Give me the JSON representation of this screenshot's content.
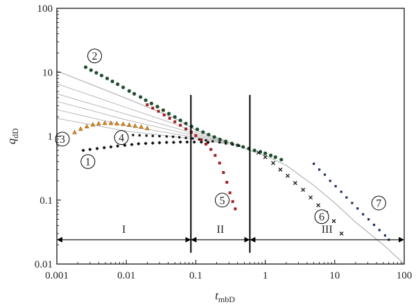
{
  "chart_data": {
    "type": "scatter",
    "scale": {
      "x": "log",
      "y": "log"
    },
    "xlim": [
      0.001,
      100
    ],
    "ylim": [
      0.01,
      100
    ],
    "x_ticks": [
      0.001,
      0.01,
      0.1,
      1,
      10,
      100
    ],
    "x_tick_labels": [
      "0.001",
      "0.01",
      "0.1",
      "1",
      "10",
      "100"
    ],
    "y_ticks": [
      0.01,
      0.1,
      1,
      10,
      100
    ],
    "y_tick_labels": [
      "0.01",
      "0.1",
      "1",
      "10",
      "100"
    ],
    "xlabel": {
      "main": "t",
      "sub": "mbD"
    },
    "ylabel": {
      "main": "q",
      "sub": "dD"
    },
    "grid": false,
    "colors": {
      "curve2": "#1f4e2e",
      "curve3": "#d98b1c",
      "curve4": "#111111",
      "curve5": "#a31e1e",
      "curve6": "#1a1a1a",
      "curve7": "#1a2a60",
      "curve1": "#111111",
      "type_curves": "#b8b8b8"
    },
    "type_curves": [
      {
        "values": [
          [
            0.001,
            10.5
          ],
          [
            0.01,
            3.9
          ],
          [
            0.05,
            1.9
          ],
          [
            0.1,
            1.25
          ],
          [
            0.2,
            0.95
          ],
          [
            0.4,
            0.72
          ],
          [
            0.6,
            0.6
          ],
          [
            1,
            0.5
          ],
          [
            2,
            0.35
          ],
          [
            5,
            0.17
          ],
          [
            10,
            0.09
          ],
          [
            20,
            0.045
          ],
          [
            50,
            0.02
          ],
          [
            100,
            0.01
          ]
        ]
      },
      {
        "values": [
          [
            0.001,
            6.6
          ],
          [
            0.01,
            2.8
          ],
          [
            0.05,
            1.55
          ],
          [
            0.1,
            1.15
          ],
          [
            0.3,
            0.8
          ]
        ]
      },
      {
        "values": [
          [
            0.001,
            4.6
          ],
          [
            0.01,
            2.2
          ],
          [
            0.05,
            1.35
          ],
          [
            0.1,
            1.08
          ],
          [
            0.3,
            0.78
          ]
        ]
      },
      {
        "values": [
          [
            0.001,
            3.5
          ],
          [
            0.01,
            1.8
          ],
          [
            0.05,
            1.2
          ],
          [
            0.1,
            1.02
          ],
          [
            0.3,
            0.77
          ]
        ]
      },
      {
        "values": [
          [
            0.001,
            2.6
          ],
          [
            0.01,
            1.45
          ],
          [
            0.05,
            1.08
          ],
          [
            0.1,
            0.96
          ],
          [
            0.3,
            0.76
          ]
        ]
      },
      {
        "values": [
          [
            0.001,
            1.9
          ],
          [
            0.01,
            1.2
          ],
          [
            0.05,
            0.98
          ],
          [
            0.1,
            0.9
          ],
          [
            0.3,
            0.75
          ]
        ]
      }
    ],
    "series": [
      {
        "id": "1",
        "marker": "diamond",
        "x": [
          0.0024,
          0.003,
          0.0038,
          0.0048,
          0.006,
          0.0075,
          0.0095,
          0.012,
          0.015,
          0.019,
          0.024,
          0.03,
          0.038,
          0.048,
          0.06,
          0.075,
          0.095,
          0.12,
          0.15
        ],
        "y": [
          0.6,
          0.62,
          0.64,
          0.66,
          0.68,
          0.7,
          0.72,
          0.74,
          0.76,
          0.77,
          0.78,
          0.79,
          0.8,
          0.8,
          0.81,
          0.81,
          0.81,
          0.81,
          0.8
        ]
      },
      {
        "id": "2",
        "marker": "circle",
        "x": [
          0.0026,
          0.0031,
          0.0037,
          0.0044,
          0.0053,
          0.0063,
          0.0075,
          0.009,
          0.011,
          0.013,
          0.016,
          0.019,
          0.023,
          0.028,
          0.034,
          0.041,
          0.05,
          0.06,
          0.072,
          0.087,
          0.105,
          0.127,
          0.153,
          0.185,
          0.223,
          0.27,
          0.33,
          0.4,
          0.48,
          0.58,
          0.7,
          0.85,
          1.0,
          1.2,
          1.4,
          1.7
        ],
        "y": [
          12,
          10.8,
          9.8,
          8.9,
          8.0,
          7.2,
          6.5,
          5.8,
          5.1,
          4.6,
          4.1,
          3.65,
          3.25,
          2.9,
          2.55,
          2.25,
          2.0,
          1.77,
          1.58,
          1.42,
          1.28,
          1.16,
          1.06,
          0.97,
          0.89,
          0.83,
          0.77,
          0.72,
          0.68,
          0.64,
          0.6,
          0.57,
          0.54,
          0.5,
          0.47,
          0.43
        ]
      },
      {
        "id": "3",
        "marker": "triangle",
        "x": [
          0.0018,
          0.0022,
          0.0027,
          0.0033,
          0.004,
          0.0049,
          0.006,
          0.0073,
          0.009,
          0.011,
          0.0134,
          0.0164,
          0.02
        ],
        "y": [
          1.15,
          1.3,
          1.42,
          1.52,
          1.58,
          1.6,
          1.6,
          1.58,
          1.55,
          1.5,
          1.45,
          1.4,
          1.33
        ]
      },
      {
        "id": "4",
        "marker": "square-small",
        "x": [
          0.008,
          0.01,
          0.0125,
          0.0155,
          0.0195,
          0.024,
          0.03,
          0.038,
          0.047,
          0.058,
          0.072,
          0.09,
          0.112,
          0.14,
          0.175,
          0.22,
          0.27,
          0.34,
          0.42
        ],
        "y": [
          1.06,
          1.05,
          1.04,
          1.03,
          1.02,
          1.01,
          1.0,
          0.99,
          0.98,
          0.96,
          0.94,
          0.92,
          0.89,
          0.86,
          0.83,
          0.8,
          0.77,
          0.74,
          0.71
        ]
      },
      {
        "id": "5",
        "marker": "square",
        "x": [
          0.02,
          0.024,
          0.029,
          0.035,
          0.042,
          0.05,
          0.06,
          0.072,
          0.086,
          0.1,
          0.12,
          0.14,
          0.165,
          0.19,
          0.22,
          0.25,
          0.28,
          0.31,
          0.34,
          0.37
        ],
        "y": [
          3.1,
          2.75,
          2.45,
          2.15,
          1.9,
          1.68,
          1.48,
          1.3,
          1.15,
          1.02,
          0.88,
          0.75,
          0.62,
          0.5,
          0.38,
          0.27,
          0.19,
          0.13,
          0.095,
          0.073
        ]
      },
      {
        "id": "6",
        "marker": "cross",
        "x": [
          0.8,
          1.0,
          1.3,
          1.65,
          2.1,
          2.7,
          3.5,
          4.5,
          5.8,
          7.5,
          9.7,
          12.5
        ],
        "y": [
          0.55,
          0.47,
          0.38,
          0.3,
          0.24,
          0.185,
          0.145,
          0.11,
          0.083,
          0.063,
          0.047,
          0.03
        ]
      },
      {
        "id": "7",
        "marker": "square-small",
        "x": [
          5,
          6,
          7.2,
          8.6,
          10.3,
          12.4,
          14.8,
          17.8,
          21.3,
          25.6,
          30.7,
          36.8,
          44,
          53,
          60
        ],
        "y": [
          0.37,
          0.3,
          0.25,
          0.2,
          0.165,
          0.135,
          0.11,
          0.09,
          0.074,
          0.06,
          0.05,
          0.041,
          0.034,
          0.028,
          0.024
        ]
      }
    ],
    "vertical_lines": [
      0.085,
      0.6
    ],
    "regions": [
      {
        "label": "I",
        "x_from": 0.001,
        "x_to": 0.085,
        "y": 0.024
      },
      {
        "label": "II",
        "x_from": 0.085,
        "x_to": 0.6,
        "y": 0.024
      },
      {
        "label": "III",
        "x_from": 0.6,
        "x_to": 100,
        "y": 0.024
      }
    ],
    "annotations": [
      {
        "label": "1",
        "x": 0.0028,
        "y": 0.4
      },
      {
        "label": "2",
        "x": 0.0035,
        "y": 18
      },
      {
        "label": "3",
        "x": 0.0012,
        "y": 0.9
      },
      {
        "label": "4",
        "x": 0.0085,
        "y": 0.95
      },
      {
        "label": "5",
        "x": 0.24,
        "y": 0.1
      },
      {
        "label": "6",
        "x": 6.5,
        "y": 0.055
      },
      {
        "label": "7",
        "x": 43,
        "y": 0.09
      }
    ]
  }
}
